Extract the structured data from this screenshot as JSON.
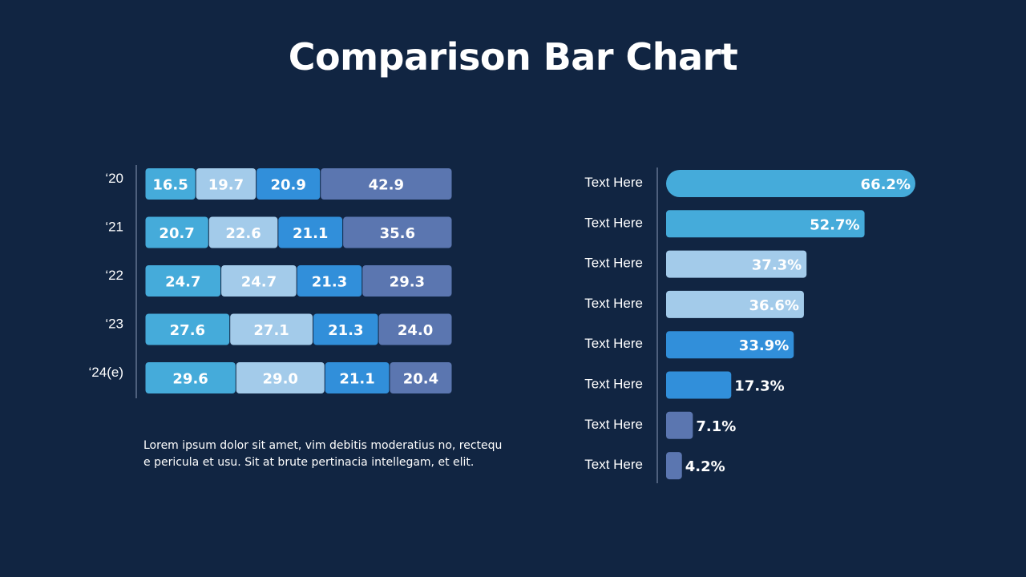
{
  "title": "Comparison Bar Chart",
  "description": "Lorem ipsum dolor sit amet, vim debitis moderatius no, rectequ e pericula et usu. Sit at brute pertinacia intellegam, et elit.",
  "colors": {
    "background": "#112542",
    "series_1": "#45abda",
    "series_2": "#a3cbea",
    "series_3": "#318fda",
    "series_4": "#5b76b0",
    "axis_line": "#8a9bb8"
  },
  "chart_data": [
    {
      "type": "bar",
      "orientation": "horizontal",
      "stacked": true,
      "categories": [
        "‘20",
        "‘21",
        "‘22",
        "‘23",
        "‘24(e)"
      ],
      "series": [
        {
          "values": [
            16.5,
            20.7,
            24.7,
            27.6,
            29.6
          ],
          "color": "#45abda"
        },
        {
          "values": [
            19.7,
            22.6,
            24.7,
            27.1,
            29.0
          ],
          "color": "#a3cbea"
        },
        {
          "values": [
            20.9,
            21.1,
            21.3,
            21.3,
            21.1
          ],
          "color": "#318fda"
        },
        {
          "values": [
            42.9,
            35.6,
            29.3,
            24.0,
            20.4
          ],
          "color": "#5b76b0"
        }
      ],
      "data_labels": [
        [
          "16.5",
          "20.7",
          "24.7",
          "27.6",
          "29.6"
        ],
        [
          "19.7",
          "22.6",
          "24.7",
          "27.1",
          "29.0"
        ],
        [
          "20.9",
          "21.1",
          "21.3",
          "21.3",
          "21.1"
        ],
        [
          "42.9",
          "35.6",
          "29.3",
          "24.0",
          "20.4"
        ]
      ],
      "xlim": [
        0,
        100
      ],
      "grid": false,
      "legend": "none"
    },
    {
      "type": "bar",
      "orientation": "horizontal",
      "categories": [
        "Text Here",
        "Text Here",
        "Text Here",
        "Text Here",
        "Text Here",
        "Text Here",
        "Text Here",
        "Text Here"
      ],
      "values": [
        66.2,
        52.7,
        37.3,
        36.6,
        33.9,
        17.3,
        7.1,
        4.2
      ],
      "data_labels": [
        "66.2%",
        "52.7%",
        "37.3%",
        "36.6%",
        "33.9%",
        "17.3%",
        "7.1%",
        "4.2%"
      ],
      "colors": [
        "#45abda",
        "#45abda",
        "#a3cbea",
        "#a3cbea",
        "#318fda",
        "#318fda",
        "#5b76b0",
        "#5b76b0"
      ],
      "xlim": [
        0,
        66.2
      ],
      "grid": false,
      "legend": "none"
    }
  ]
}
